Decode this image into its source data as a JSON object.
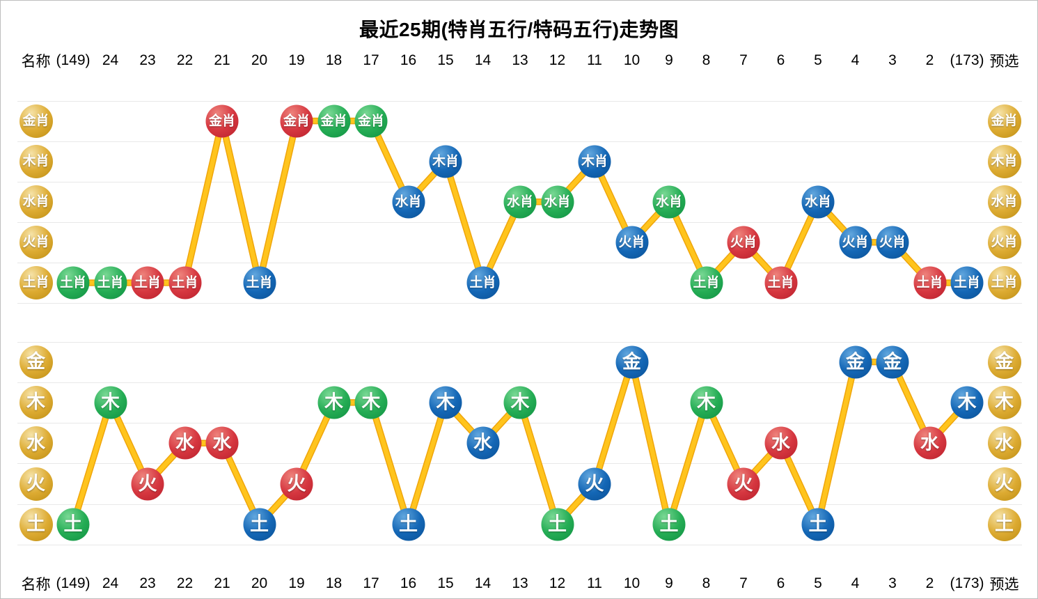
{
  "title": "最近25期(特肖五行/特码五行)走势图",
  "columns": [
    "名称",
    "(149)",
    "24",
    "23",
    "22",
    "21",
    "20",
    "19",
    "18",
    "17",
    "16",
    "15",
    "14",
    "13",
    "12",
    "11",
    "10",
    "9",
    "8",
    "7",
    "6",
    "5",
    "4",
    "3",
    "2",
    "(173)",
    "预选"
  ],
  "preselect_label": "预选",
  "name_label": "名称",
  "colors": {
    "gold": "#D9A62E",
    "green": "#22A953",
    "red": "#D63740",
    "blue": "#1365B6",
    "line": "#FFC41D",
    "line_edge": "#EFA50B",
    "grid": "#E8E8E8",
    "text": "#000000",
    "page_border": "#BDBDBD"
  },
  "chart_data": [
    {
      "type": "line",
      "name": "特肖五行",
      "rows": [
        "金肖",
        "木肖",
        "水肖",
        "火肖",
        "土肖"
      ],
      "x": [
        "(149)",
        "24",
        "23",
        "22",
        "21",
        "20",
        "19",
        "18",
        "17",
        "16",
        "15",
        "14",
        "13",
        "12",
        "11",
        "10",
        "9",
        "8",
        "7",
        "6",
        "5",
        "4",
        "3",
        "2",
        "(173)"
      ],
      "values": [
        "土肖",
        "土肖",
        "土肖",
        "土肖",
        "金肖",
        "土肖",
        "金肖",
        "金肖",
        "金肖",
        "水肖",
        "木肖",
        "土肖",
        "水肖",
        "水肖",
        "木肖",
        "火肖",
        "水肖",
        "土肖",
        "火肖",
        "土肖",
        "水肖",
        "火肖",
        "火肖",
        "土肖",
        "土肖"
      ],
      "ball_colors": [
        "green",
        "green",
        "red",
        "red",
        "red",
        "blue",
        "red",
        "green",
        "green",
        "blue",
        "blue",
        "blue",
        "green",
        "green",
        "blue",
        "blue",
        "green",
        "green",
        "red",
        "red",
        "blue",
        "blue",
        "blue",
        "red",
        "blue"
      ],
      "legend_position": "none",
      "grid": true
    },
    {
      "type": "line",
      "name": "特码五行",
      "rows": [
        "金",
        "木",
        "水",
        "火",
        "土"
      ],
      "x": [
        "(149)",
        "24",
        "23",
        "22",
        "21",
        "20",
        "19",
        "18",
        "17",
        "16",
        "15",
        "14",
        "13",
        "12",
        "11",
        "10",
        "9",
        "8",
        "7",
        "6",
        "5",
        "4",
        "3",
        "2",
        "(173)"
      ],
      "values": [
        "土",
        "木",
        "火",
        "水",
        "水",
        "土",
        "火",
        "木",
        "木",
        "土",
        "木",
        "水",
        "木",
        "土",
        "火",
        "金",
        "土",
        "木",
        "火",
        "水",
        "土",
        "金",
        "金",
        "水",
        "木"
      ],
      "ball_colors": [
        "green",
        "green",
        "red",
        "red",
        "red",
        "blue",
        "red",
        "green",
        "green",
        "blue",
        "blue",
        "blue",
        "green",
        "green",
        "blue",
        "blue",
        "green",
        "green",
        "red",
        "red",
        "blue",
        "blue",
        "blue",
        "red",
        "blue"
      ],
      "legend_position": "none",
      "grid": true
    }
  ]
}
